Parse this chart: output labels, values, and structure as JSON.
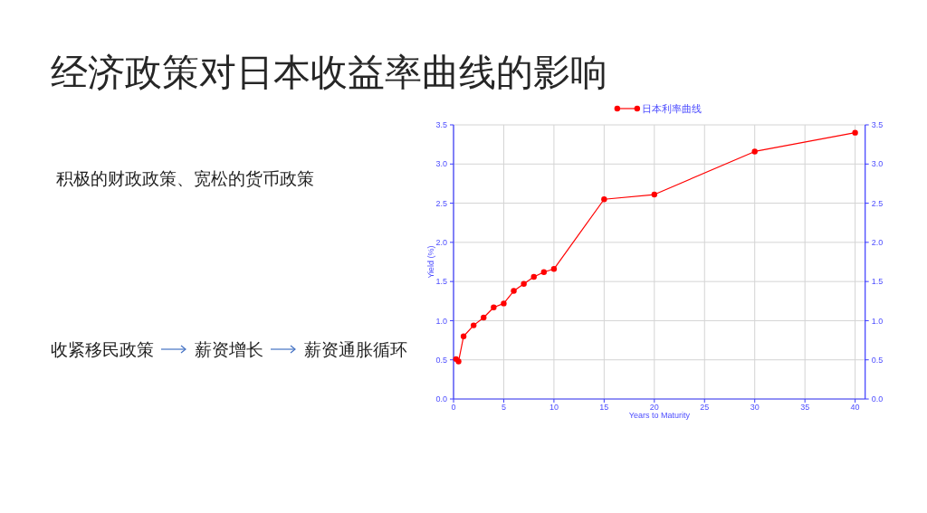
{
  "chart_data": {
    "type": "line",
    "title": "经济政策对日本收益率曲线的影响",
    "annotations": [
      "积极的财政政策、宽松的货币政策",
      "收紧移民政策",
      "薪资增长",
      "薪资通胀循环"
    ],
    "xlabel": "Years to Maturity",
    "ylabel": "Yield (%)",
    "x": [
      0.25,
      0.5,
      1,
      2,
      3,
      4,
      5,
      6,
      7,
      8,
      9,
      10,
      15,
      20,
      30,
      40
    ],
    "series": [
      {
        "name": "日本利率曲线",
        "color": "#ff0000",
        "values": [
          0.51,
          0.48,
          0.8,
          0.94,
          1.04,
          1.17,
          1.22,
          1.38,
          1.47,
          1.56,
          1.62,
          1.66,
          2.55,
          2.61,
          3.16,
          3.4
        ]
      }
    ],
    "xlim": [
      0,
      41
    ],
    "xticks": [
      0,
      5,
      10,
      15,
      20,
      25,
      30,
      35,
      40
    ],
    "ylim": [
      0,
      3.5
    ],
    "yticks": [
      {
        "value": 0,
        "label": "0.0"
      },
      0.5,
      {
        "value": 1,
        "label": "1.0"
      },
      1.5,
      {
        "value": 2,
        "label": "2.0"
      },
      2.5,
      {
        "value": 3,
        "label": "3.0"
      },
      3.5
    ],
    "y2lim": [
      0,
      3.5
    ],
    "y2ticks": [
      {
        "value": 0,
        "label": "0.0"
      },
      0.5,
      {
        "value": 1,
        "label": "1.0"
      },
      1.5,
      {
        "value": 2,
        "label": "2.0"
      },
      2.5,
      {
        "value": 3,
        "label": "3.0"
      },
      3.5
    ],
    "grid": true,
    "legend": "top",
    "marker": "circle",
    "line_style": "solid"
  }
}
